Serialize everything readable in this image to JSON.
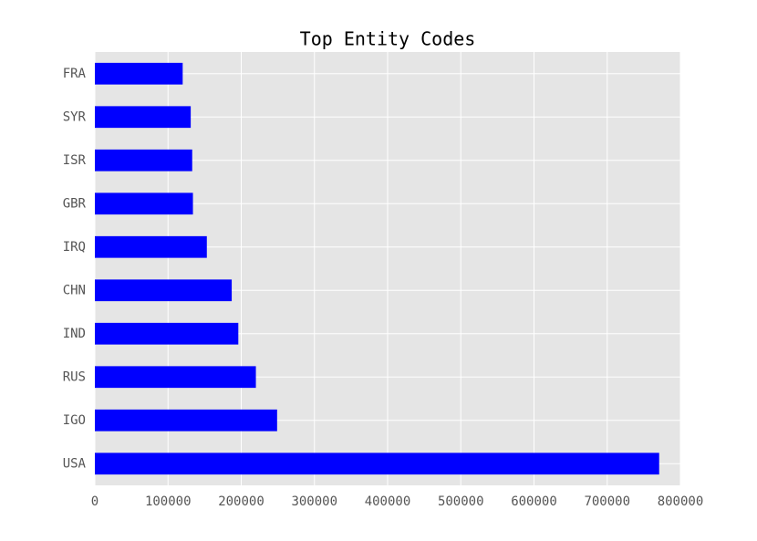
{
  "chart_data": {
    "type": "barh",
    "title": "Top Entity Codes",
    "categories": [
      "USA",
      "IGO",
      "RUS",
      "IND",
      "CHN",
      "IRQ",
      "GBR",
      "ISR",
      "SYR",
      "FRA"
    ],
    "values": [
      771000,
      249000,
      220000,
      196000,
      187000,
      153000,
      134000,
      133000,
      131000,
      120000
    ],
    "color": "#0000ff",
    "xlim": [
      0,
      800000
    ],
    "xticks": [
      0,
      100000,
      200000,
      300000,
      400000,
      500000,
      600000,
      700000,
      800000
    ],
    "grid": true
  }
}
